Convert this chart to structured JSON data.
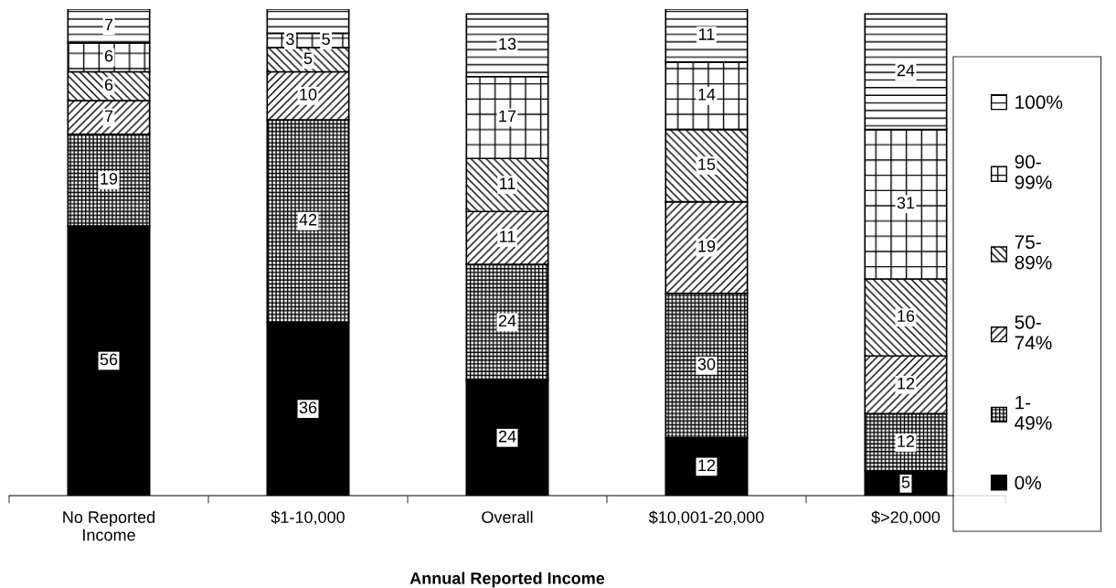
{
  "chart_data": {
    "type": "bar",
    "stacked": true,
    "xlabel": "Annual Reported Income",
    "data_labels": true,
    "legend": "right",
    "grid": false,
    "categories": [
      "No Reported\nIncome",
      "$1-10,000",
      "Overall",
      "$10,001-20,000",
      "$>20,000"
    ],
    "series": [
      {
        "name": "0%",
        "color": "#000000",
        "values": [
          56,
          36,
          24,
          12,
          5
        ]
      },
      {
        "name": "1-\n49%",
        "color": "#000000",
        "values": [
          19,
          42,
          24,
          30,
          12
        ]
      },
      {
        "name": "50-\n74%",
        "color": "#000000",
        "values": [
          7,
          10,
          11,
          19,
          12
        ]
      },
      {
        "name": "75-\n89%",
        "color": "#000000",
        "values": [
          6,
          5,
          11,
          15,
          16
        ]
      },
      {
        "name": "90-\n99%",
        "color": "#000000",
        "values": [
          6,
          3,
          17,
          14,
          31
        ]
      },
      {
        "name": "100%",
        "color": "#000000",
        "values": [
          7,
          5,
          13,
          11,
          24
        ]
      }
    ]
  }
}
